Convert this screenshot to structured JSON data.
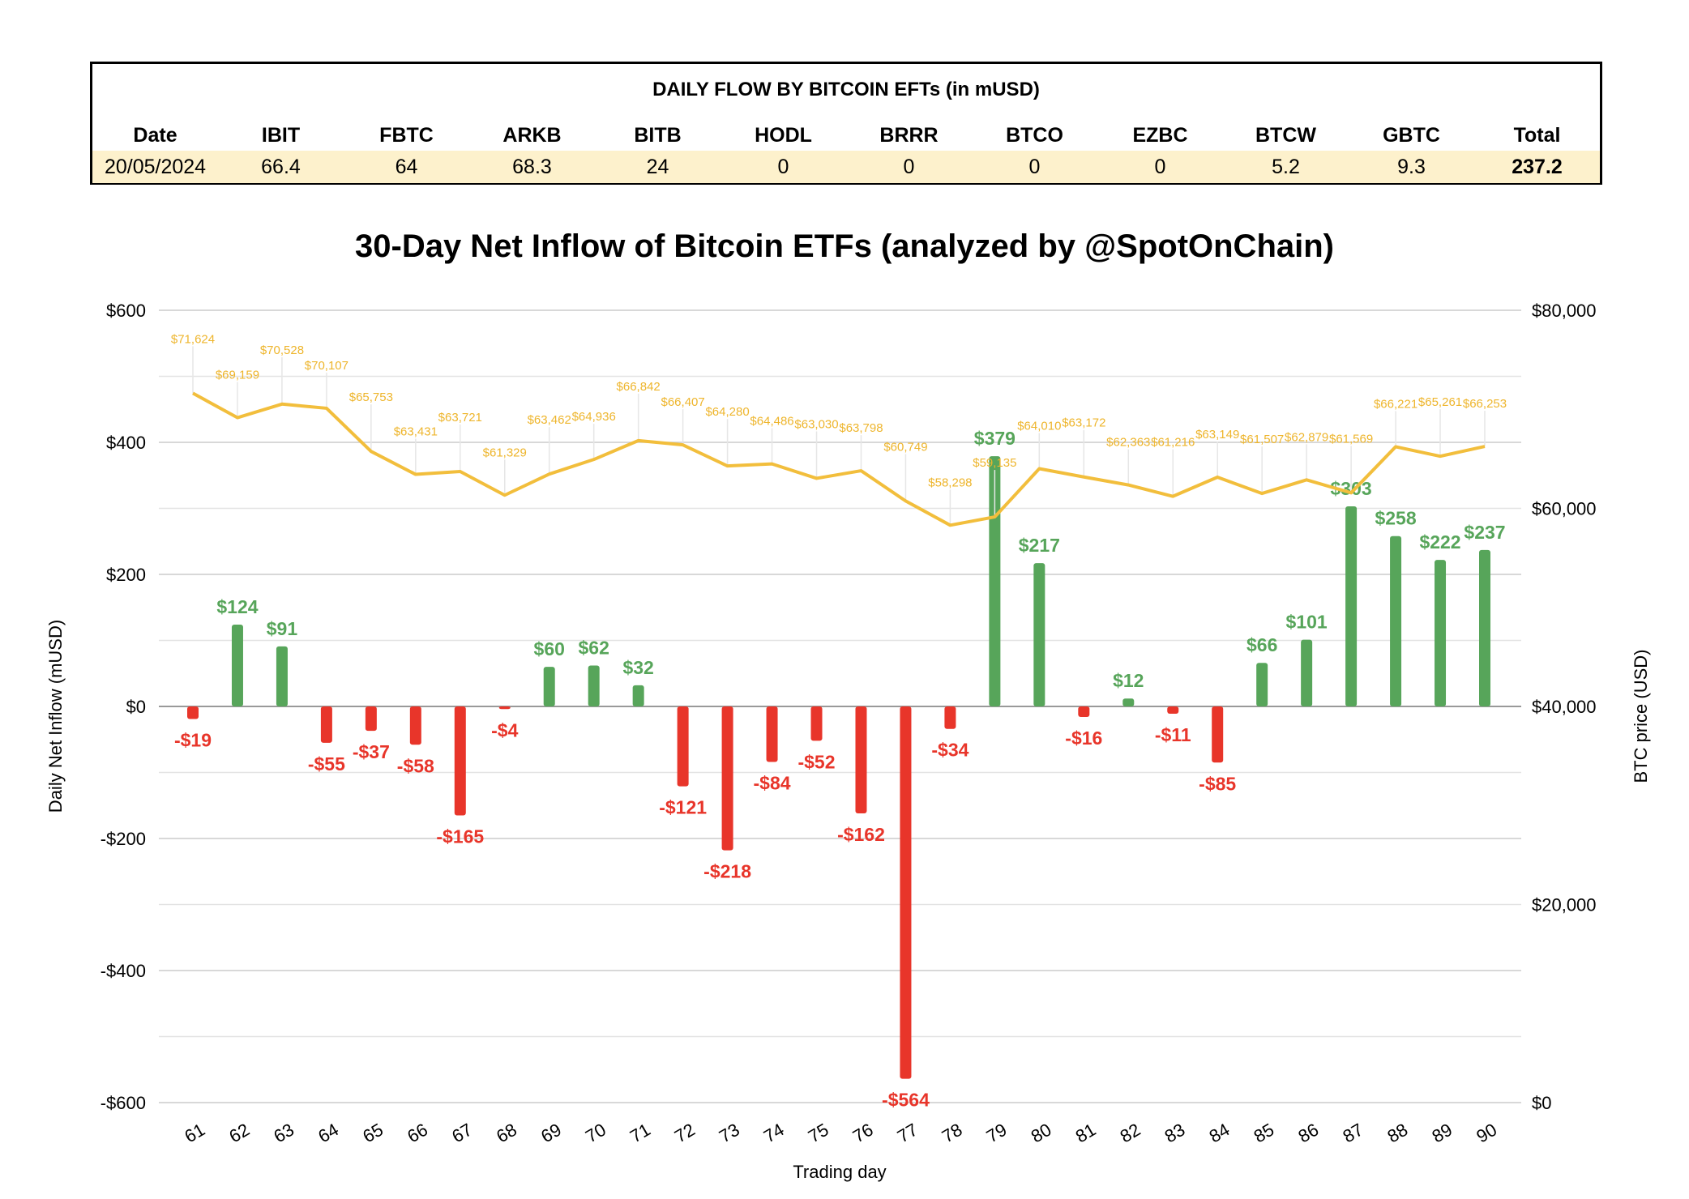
{
  "table": {
    "title": "DAILY FLOW BY BITCOIN EFTs (in mUSD)",
    "headers": [
      "Date",
      "IBIT",
      "FBTC",
      "ARKB",
      "BITB",
      "HODL",
      "BRRR",
      "BTCO",
      "EZBC",
      "BTCW",
      "GBTC",
      "Total"
    ],
    "row": [
      "20/05/2024",
      "66.4",
      "64",
      "68.3",
      "24",
      "0",
      "0",
      "0",
      "0",
      "5.2",
      "9.3",
      "237.2"
    ]
  },
  "chart_data": {
    "type": "bar+line",
    "title": "30-Day Net Inflow of Bitcoin ETFs (analyzed by @SpotOnChain)",
    "xlabel": "Trading day",
    "ylabel": "Daily Net Inflow (mUSD)",
    "y2label": "BTC price (USD)",
    "ylim": [
      -600,
      600
    ],
    "y2lim": [
      0,
      80000
    ],
    "yticks": [
      "$600",
      "$400",
      "$200",
      "$0",
      "-$200",
      "-$400",
      "-$600"
    ],
    "y2ticks": [
      "$80,000",
      "$60,000",
      "$40,000",
      "$20,000",
      "$0"
    ],
    "grid": true,
    "x": [
      61,
      62,
      63,
      64,
      65,
      66,
      67,
      68,
      69,
      70,
      71,
      72,
      73,
      74,
      75,
      76,
      77,
      78,
      79,
      80,
      81,
      82,
      83,
      84,
      85,
      86,
      87,
      88,
      89,
      90
    ],
    "inflow": [
      -19,
      124,
      91,
      -55,
      -37,
      -58,
      -165,
      -4,
      60,
      62,
      32,
      -121,
      -218,
      -84,
      -52,
      -162,
      -564,
      -34,
      379,
      217,
      -16,
      12,
      -11,
      -85,
      66,
      101,
      303,
      258,
      222,
      237
    ],
    "btc_price": [
      71624,
      69159,
      70528,
      70107,
      65753,
      63431,
      63721,
      61329,
      63462,
      64936,
      66842,
      66407,
      64280,
      64486,
      63030,
      63798,
      60749,
      58298,
      59135,
      64010,
      63172,
      62363,
      61216,
      63149,
      61507,
      62879,
      61569,
      66221,
      65261,
      66253
    ],
    "colors": {
      "positive": "#57a55a",
      "negative": "#e8352a",
      "price": "#f2be3c"
    }
  }
}
